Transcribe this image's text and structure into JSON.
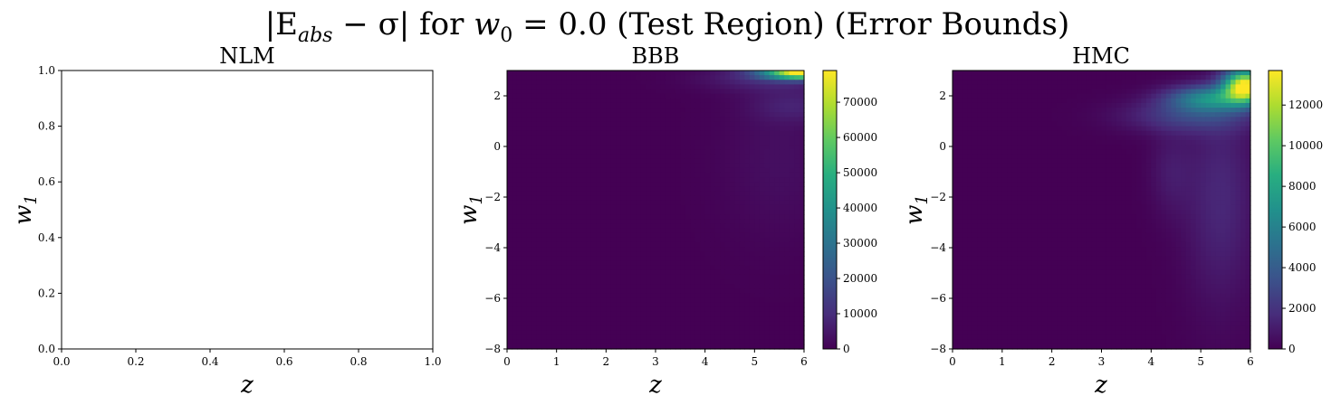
{
  "figure": {
    "title": "|E_abs − σ| for w_0 = 0.0 (Test Region) (Error Bounds)",
    "title_parts": {
      "lhs": "|E",
      "sub_abs": "abs",
      "minus": " − σ| for ",
      "w": "w",
      "sub_0": "0",
      "rest": " = 0.0 (Test Region) (Error Bounds)"
    }
  },
  "chart_data": [
    {
      "type": "scatter",
      "title": "NLM",
      "xlabel": "z",
      "ylabel": "w1",
      "xlim": [
        0,
        1
      ],
      "ylim": [
        0,
        1
      ],
      "xticks": [
        "0.0",
        "0.2",
        "0.4",
        "0.6",
        "0.8",
        "1.0"
      ],
      "yticks": [
        "0.0",
        "0.2",
        "0.4",
        "0.6",
        "0.8",
        "1.0"
      ],
      "series": [],
      "grid": false
    },
    {
      "type": "heatmap",
      "title": "BBB",
      "xlabel": "z",
      "ylabel": "w1",
      "xlim": [
        0,
        6
      ],
      "ylim": [
        -8,
        3
      ],
      "xticks": [
        "0",
        "1",
        "2",
        "3",
        "4",
        "5",
        "6"
      ],
      "yticks": [
        "−8",
        "−6",
        "−4",
        "−2",
        "0",
        "2"
      ],
      "colormap": "viridis",
      "colorbar": {
        "min": 0,
        "max": 79000,
        "ticks": [
          "0",
          "10000",
          "20000",
          "30000",
          "40000",
          "50000",
          "60000",
          "70000"
        ]
      },
      "hotspots": [
        {
          "z": 6.0,
          "w1": 2.9,
          "value": 79000,
          "sz": 0.55,
          "sw": 0.17
        },
        {
          "z": 5.3,
          "w1": 2.7,
          "value": 9000,
          "sz": 0.9,
          "sw": 0.35
        },
        {
          "z": 5.8,
          "w1": 1.6,
          "value": 6000,
          "sz": 0.6,
          "sw": 0.45
        },
        {
          "z": 5.5,
          "w1": -0.5,
          "value": 3000,
          "sz": 0.8,
          "sw": 2.2
        }
      ],
      "grid": false
    },
    {
      "type": "heatmap",
      "title": "HMC",
      "xlabel": "z",
      "ylabel": "w1",
      "xlim": [
        0,
        6
      ],
      "ylim": [
        -8,
        3
      ],
      "xticks": [
        "0",
        "1",
        "2",
        "3",
        "4",
        "5",
        "6"
      ],
      "yticks": [
        "−8",
        "−6",
        "−4",
        "−2",
        "0",
        "2"
      ],
      "colormap": "viridis",
      "colorbar": {
        "min": 0,
        "max": 13700,
        "ticks": [
          "0",
          "2000",
          "4000",
          "6000",
          "8000",
          "10000",
          "12000"
        ]
      },
      "hotspots": [
        {
          "z": 5.9,
          "w1": 2.4,
          "value": 13500,
          "sz": 0.3,
          "sw": 0.45
        },
        {
          "z": 5.2,
          "w1": 1.9,
          "value": 6000,
          "sz": 0.6,
          "sw": 0.35
        },
        {
          "z": 4.8,
          "w1": 1.2,
          "value": 2500,
          "sz": 0.9,
          "sw": 0.45
        },
        {
          "z": 5.4,
          "w1": -2.0,
          "value": 1500,
          "sz": 0.5,
          "sw": 3.0
        },
        {
          "z": 4.4,
          "w1": -1.0,
          "value": 900,
          "sz": 0.3,
          "sw": 1.2
        }
      ],
      "grid": false
    }
  ]
}
